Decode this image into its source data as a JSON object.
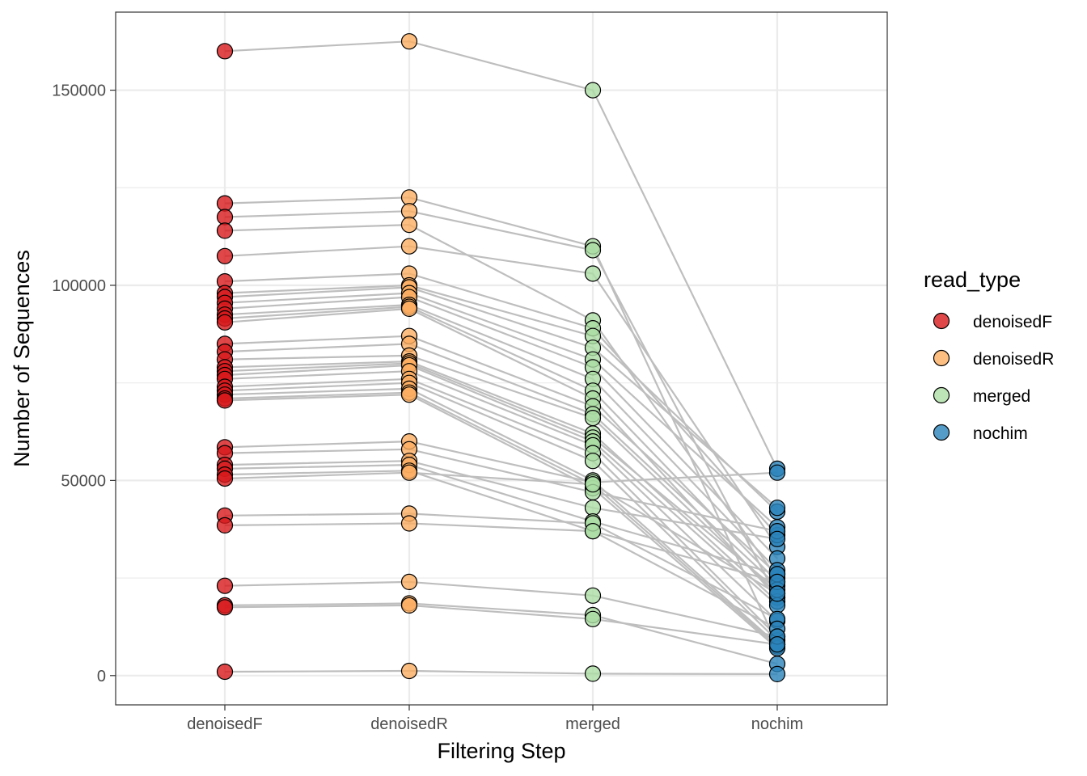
{
  "chart_data": {
    "type": "scatter",
    "xlabel": "Filtering Step",
    "ylabel": "Number of Sequences",
    "categories": [
      "denoisedF",
      "denoisedR",
      "merged",
      "nochim"
    ],
    "ylim": [
      -7500,
      170000
    ],
    "yticks": [
      0,
      50000,
      100000,
      150000
    ],
    "grid": true,
    "legend": {
      "title": "read_type",
      "position": "right",
      "entries": [
        "denoisedF",
        "denoisedR",
        "merged",
        "nochim"
      ]
    },
    "colors": {
      "denoisedF": "#d7191c",
      "denoisedR": "#fdae61",
      "merged": "#abdda4",
      "nochim": "#2b83ba",
      "line": "#bebebe",
      "grid": "#ebebeb",
      "point_outline": "#000000"
    },
    "series": [
      {
        "values": [
          160000,
          162500,
          150000,
          53000
        ]
      },
      {
        "values": [
          121000,
          122500,
          110000,
          8000
        ]
      },
      {
        "values": [
          117500,
          119000,
          109000,
          20000
        ]
      },
      {
        "values": [
          114000,
          115500,
          91000,
          25000
        ]
      },
      {
        "values": [
          107500,
          110000,
          103000,
          33000
        ]
      },
      {
        "values": [
          101000,
          103000,
          89000,
          36000
        ]
      },
      {
        "values": [
          98000,
          100000,
          87000,
          42000
        ]
      },
      {
        "values": [
          97000,
          99500,
          84000,
          43000
        ]
      },
      {
        "values": [
          95500,
          98000,
          81000,
          38000
        ]
      },
      {
        "values": [
          94000,
          97000,
          79000,
          30000
        ]
      },
      {
        "values": [
          92500,
          95000,
          76000,
          27000
        ]
      },
      {
        "values": [
          91500,
          94500,
          73000,
          24000
        ]
      },
      {
        "values": [
          90500,
          94000,
          71000,
          20000
        ]
      },
      {
        "values": [
          85000,
          87000,
          69000,
          26000
        ]
      },
      {
        "values": [
          83000,
          85000,
          67000,
          23000
        ]
      },
      {
        "values": [
          81000,
          82000,
          66000,
          21000
        ]
      },
      {
        "values": [
          79000,
          80500,
          62000,
          19000
        ]
      },
      {
        "values": [
          78000,
          80000,
          61000,
          22000
        ]
      },
      {
        "values": [
          77000,
          79500,
          60000,
          18000
        ]
      },
      {
        "values": [
          76000,
          78000,
          59000,
          14000
        ]
      },
      {
        "values": [
          74000,
          76000,
          57000,
          10000
        ]
      },
      {
        "values": [
          73000,
          75000,
          55000,
          9000
        ]
      },
      {
        "values": [
          72000,
          73500,
          50000,
          8000
        ]
      },
      {
        "values": [
          71000,
          72500,
          49000,
          7500
        ]
      },
      {
        "values": [
          70500,
          72000,
          48000,
          7000
        ]
      },
      {
        "values": [
          58500,
          60000,
          49500,
          52000
        ]
      },
      {
        "values": [
          57000,
          58000,
          47000,
          37000
        ]
      },
      {
        "values": [
          54000,
          55000,
          43000,
          35000
        ]
      },
      {
        "values": [
          53000,
          54000,
          39500,
          26000
        ]
      },
      {
        "values": [
          51500,
          52500,
          37000,
          24000
        ]
      },
      {
        "values": [
          50500,
          52000,
          49000,
          21000
        ]
      },
      {
        "values": [
          41000,
          41500,
          39000,
          14500
        ]
      },
      {
        "values": [
          38500,
          39000,
          37000,
          12000
        ]
      },
      {
        "values": [
          23000,
          24000,
          20500,
          10000
        ]
      },
      {
        "values": [
          18000,
          18500,
          15500,
          3000
        ]
      },
      {
        "values": [
          17500,
          18000,
          14500,
          8000
        ]
      },
      {
        "values": [
          1000,
          1200,
          500,
          400
        ]
      }
    ]
  }
}
